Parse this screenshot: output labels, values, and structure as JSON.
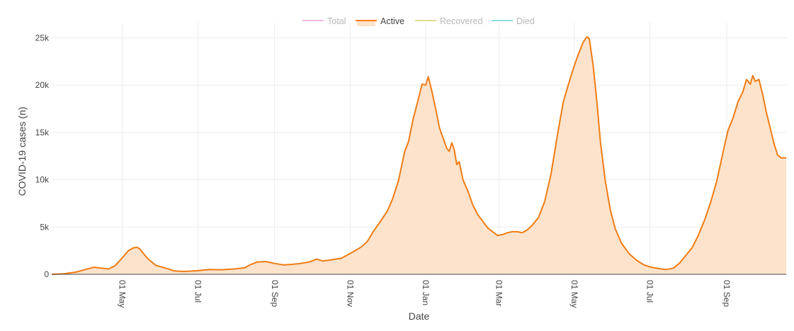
{
  "chart_data": {
    "type": "area",
    "xlabel": "Date",
    "ylabel": "COVID-19 cases (n)",
    "x_range": [
      "2020-03-05",
      "2021-10-19"
    ],
    "ylim": [
      0,
      26000
    ],
    "y_ticks": [
      {
        "value": 0,
        "label": "0"
      },
      {
        "value": 5000,
        "label": "5k"
      },
      {
        "value": 10000,
        "label": "10k"
      },
      {
        "value": 15000,
        "label": "15k"
      },
      {
        "value": 20000,
        "label": "20k"
      },
      {
        "value": 25000,
        "label": "25k"
      }
    ],
    "x_ticks": [
      {
        "date": "2020-05-01",
        "label": "01 May"
      },
      {
        "date": "2020-07-01",
        "label": "01 Jul"
      },
      {
        "date": "2020-09-01",
        "label": "01 Sep"
      },
      {
        "date": "2020-11-01",
        "label": "01 Nov"
      },
      {
        "date": "2021-01-01",
        "label": "01 Jan"
      },
      {
        "date": "2021-03-01",
        "label": "01 Mar"
      },
      {
        "date": "2021-05-01",
        "label": "01 May"
      },
      {
        "date": "2021-07-01",
        "label": "01 Jul"
      },
      {
        "date": "2021-09-01",
        "label": "01 Sep"
      }
    ],
    "grid": true,
    "legend": {
      "position": "top-center",
      "items": [
        {
          "name": "Total",
          "color": "#e377c2",
          "active": false
        },
        {
          "name": "Active",
          "color": "#ff7f0e",
          "active": true
        },
        {
          "name": "Recovered",
          "color": "#bcbd22",
          "active": false
        },
        {
          "name": "Died",
          "color": "#17becf",
          "active": false
        }
      ]
    },
    "series": [
      {
        "name": "Active",
        "color": "#f07c14",
        "fill": "#fde3cc",
        "points": [
          [
            "2020-03-05",
            0
          ],
          [
            "2020-03-15",
            50
          ],
          [
            "2020-03-25",
            250
          ],
          [
            "2020-04-01",
            500
          ],
          [
            "2020-04-08",
            750
          ],
          [
            "2020-04-15",
            640
          ],
          [
            "2020-04-20",
            560
          ],
          [
            "2020-04-25",
            900
          ],
          [
            "2020-04-28",
            1300
          ],
          [
            "2020-05-02",
            1900
          ],
          [
            "2020-05-06",
            2500
          ],
          [
            "2020-05-10",
            2800
          ],
          [
            "2020-05-13",
            2850
          ],
          [
            "2020-05-15",
            2700
          ],
          [
            "2020-05-18",
            2200
          ],
          [
            "2020-05-22",
            1600
          ],
          [
            "2020-05-28",
            950
          ],
          [
            "2020-06-05",
            650
          ],
          [
            "2020-06-12",
            350
          ],
          [
            "2020-06-20",
            300
          ],
          [
            "2020-07-01",
            380
          ],
          [
            "2020-07-10",
            500
          ],
          [
            "2020-07-20",
            480
          ],
          [
            "2020-08-01",
            580
          ],
          [
            "2020-08-08",
            700
          ],
          [
            "2020-08-12",
            1000
          ],
          [
            "2020-08-18",
            1300
          ],
          [
            "2020-08-25",
            1350
          ],
          [
            "2020-09-01",
            1150
          ],
          [
            "2020-09-08",
            1000
          ],
          [
            "2020-09-15",
            1050
          ],
          [
            "2020-09-22",
            1150
          ],
          [
            "2020-09-29",
            1300
          ],
          [
            "2020-10-05",
            1600
          ],
          [
            "2020-10-10",
            1400
          ],
          [
            "2020-10-15",
            1500
          ],
          [
            "2020-10-20",
            1600
          ],
          [
            "2020-10-25",
            1700
          ],
          [
            "2020-11-01",
            2200
          ],
          [
            "2020-11-05",
            2500
          ],
          [
            "2020-11-10",
            2900
          ],
          [
            "2020-11-15",
            3500
          ],
          [
            "2020-11-20",
            4600
          ],
          [
            "2020-11-25",
            5500
          ],
          [
            "2020-12-01",
            6700
          ],
          [
            "2020-12-05",
            7900
          ],
          [
            "2020-12-10",
            9900
          ],
          [
            "2020-12-15",
            13000
          ],
          [
            "2020-12-18",
            14000
          ],
          [
            "2020-12-22",
            16500
          ],
          [
            "2020-12-26",
            18500
          ],
          [
            "2020-12-29",
            20100
          ],
          [
            "2021-01-01",
            20000
          ],
          [
            "2021-01-03",
            20900
          ],
          [
            "2021-01-06",
            19300
          ],
          [
            "2021-01-09",
            17500
          ],
          [
            "2021-01-12",
            15500
          ],
          [
            "2021-01-15",
            14400
          ],
          [
            "2021-01-18",
            13300
          ],
          [
            "2021-01-20",
            13000
          ],
          [
            "2021-01-22",
            13900
          ],
          [
            "2021-01-24",
            13200
          ],
          [
            "2021-01-26",
            11600
          ],
          [
            "2021-01-28",
            11900
          ],
          [
            "2021-01-31",
            10000
          ],
          [
            "2021-02-04",
            8800
          ],
          [
            "2021-02-08",
            7300
          ],
          [
            "2021-02-12",
            6300
          ],
          [
            "2021-02-16",
            5600
          ],
          [
            "2021-02-20",
            4900
          ],
          [
            "2021-02-24",
            4500
          ],
          [
            "2021-02-28",
            4100
          ],
          [
            "2021-03-04",
            4200
          ],
          [
            "2021-03-08",
            4400
          ],
          [
            "2021-03-12",
            4500
          ],
          [
            "2021-03-16",
            4500
          ],
          [
            "2021-03-20",
            4400
          ],
          [
            "2021-03-24",
            4700
          ],
          [
            "2021-03-28",
            5200
          ],
          [
            "2021-04-02",
            6000
          ],
          [
            "2021-04-07",
            7700
          ],
          [
            "2021-04-12",
            10500
          ],
          [
            "2021-04-17",
            14500
          ],
          [
            "2021-04-22",
            18200
          ],
          [
            "2021-04-26",
            20000
          ],
          [
            "2021-04-30",
            21700
          ],
          [
            "2021-05-04",
            23200
          ],
          [
            "2021-05-08",
            24500
          ],
          [
            "2021-05-11",
            25100
          ],
          [
            "2021-05-13",
            24900
          ],
          [
            "2021-05-16",
            22200
          ],
          [
            "2021-05-19",
            18500
          ],
          [
            "2021-05-22",
            14000
          ],
          [
            "2021-05-26",
            9800
          ],
          [
            "2021-05-30",
            6800
          ],
          [
            "2021-06-03",
            4800
          ],
          [
            "2021-06-08",
            3300
          ],
          [
            "2021-06-14",
            2200
          ],
          [
            "2021-06-20",
            1500
          ],
          [
            "2021-06-26",
            1000
          ],
          [
            "2021-07-02",
            750
          ],
          [
            "2021-07-08",
            600
          ],
          [
            "2021-07-14",
            500
          ],
          [
            "2021-07-20",
            650
          ],
          [
            "2021-07-25",
            1200
          ],
          [
            "2021-07-30",
            2000
          ],
          [
            "2021-08-04",
            2800
          ],
          [
            "2021-08-09",
            4100
          ],
          [
            "2021-08-14",
            5700
          ],
          [
            "2021-08-19",
            7600
          ],
          [
            "2021-08-24",
            9900
          ],
          [
            "2021-08-29",
            12900
          ],
          [
            "2021-09-02",
            15200
          ],
          [
            "2021-09-06",
            16500
          ],
          [
            "2021-09-10",
            18200
          ],
          [
            "2021-09-14",
            19300
          ],
          [
            "2021-09-17",
            20600
          ],
          [
            "2021-09-20",
            20100
          ],
          [
            "2021-09-22",
            21000
          ],
          [
            "2021-09-24",
            20400
          ],
          [
            "2021-09-27",
            20600
          ],
          [
            "2021-09-30",
            19000
          ],
          [
            "2021-10-03",
            17100
          ],
          [
            "2021-10-06",
            15500
          ],
          [
            "2021-10-09",
            13900
          ],
          [
            "2021-10-12",
            12600
          ],
          [
            "2021-10-15",
            12300
          ],
          [
            "2021-10-19",
            12300
          ]
        ]
      }
    ]
  }
}
